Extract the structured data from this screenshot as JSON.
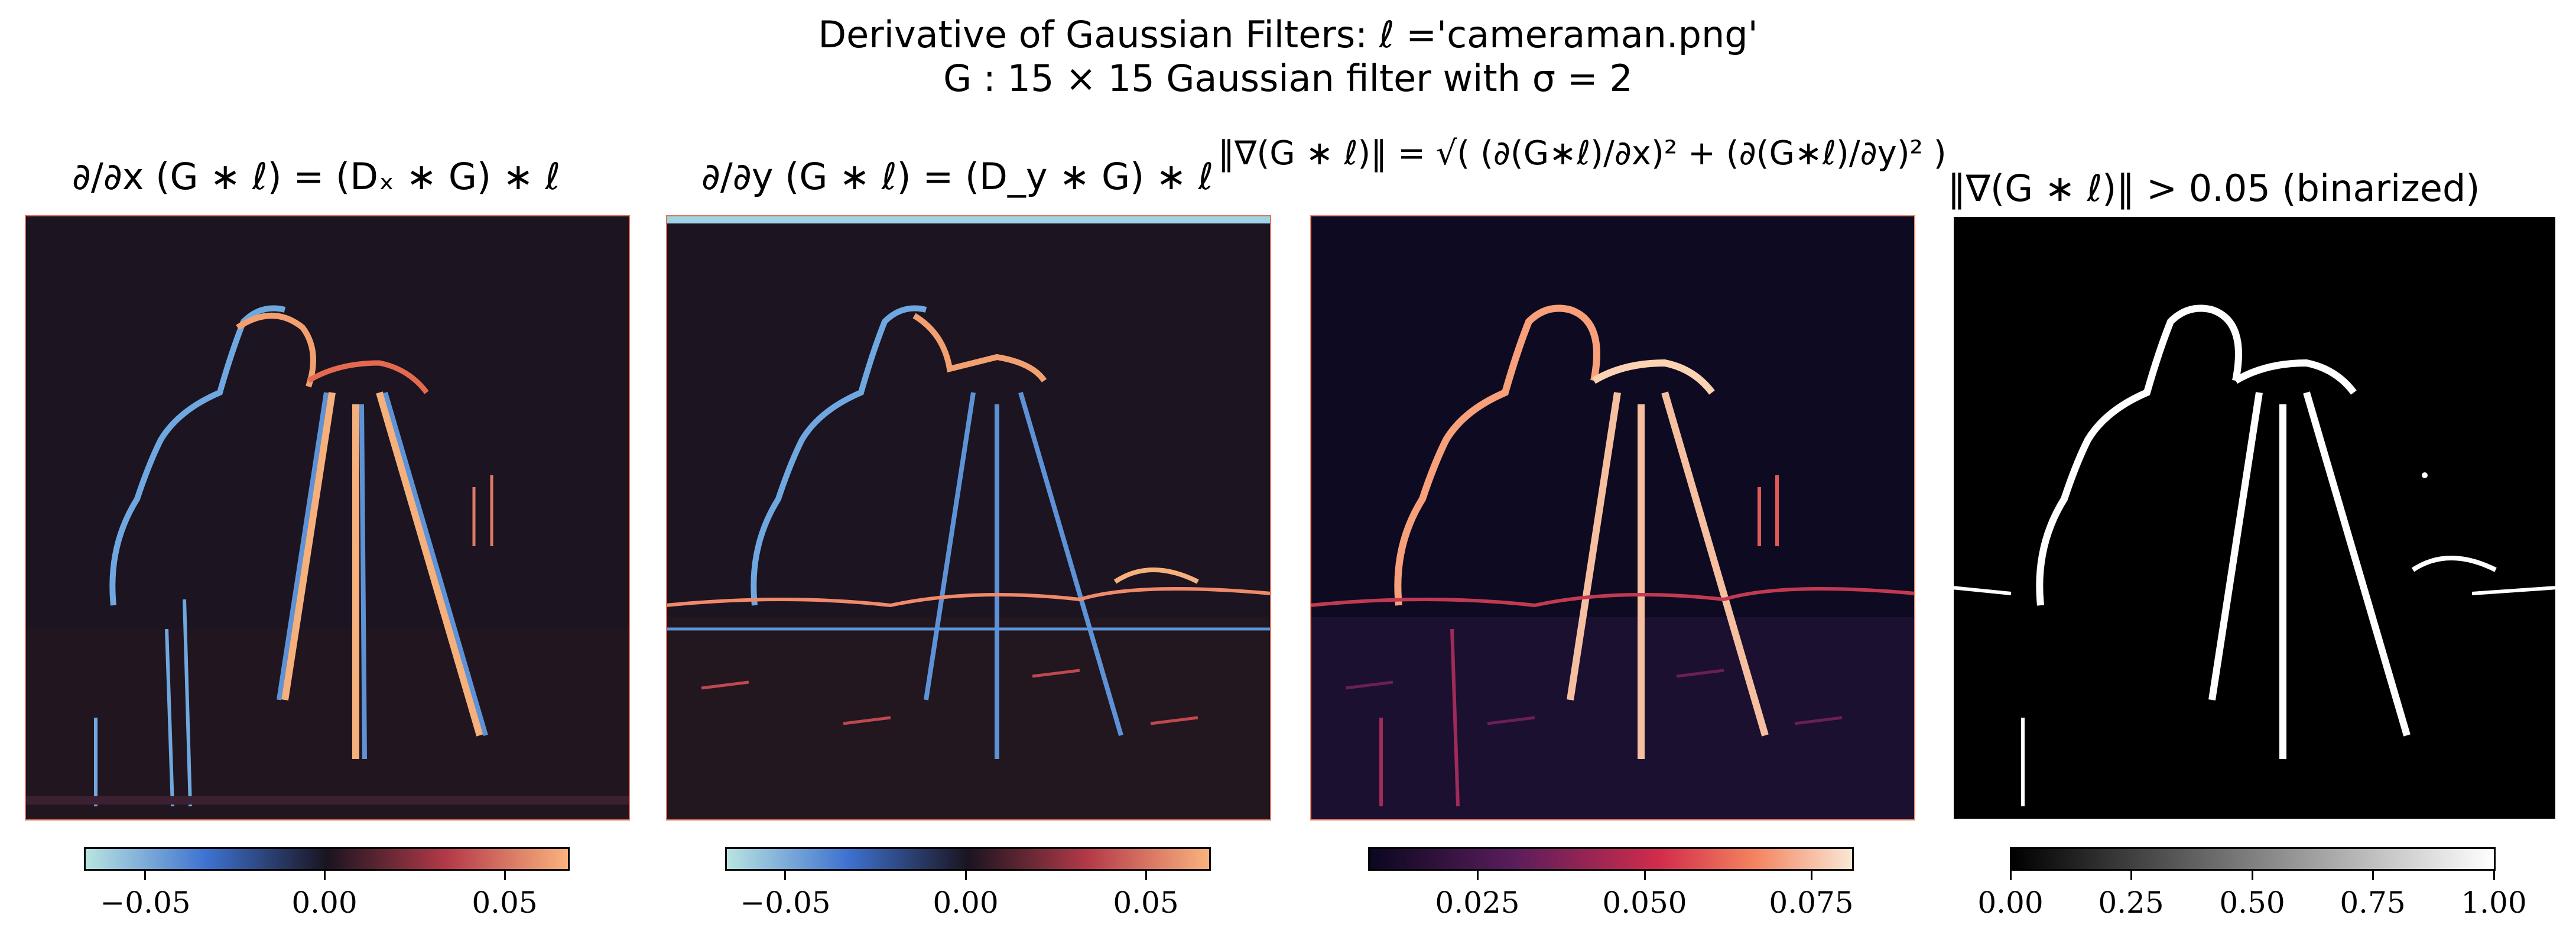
{
  "suptitle": {
    "line1": "Derivative of Gaussian Filters: ℓ ='cameraman.png'",
    "line2": "G : 15 × 15 Gaussian filter with σ = 2"
  },
  "panels": [
    {
      "title": "∂/∂x (G ∗ ℓ) = (Dₓ ∗ G) ∗ ℓ",
      "colormap": "icefire (diverging, cyan–blue–black–red–orange)",
      "colorbar_ticks": [
        "−0.05",
        "0.00",
        "0.05"
      ],
      "colors": [
        "#b9e4e1",
        "#3e72d0",
        "#1a1420",
        "#b43a48",
        "#fbb27e"
      ]
    },
    {
      "title": "∂/∂y (G ∗ ℓ) = (D_y ∗ G) ∗ ℓ",
      "colormap": "icefire (diverging, cyan–blue–black–red–orange)",
      "colorbar_ticks": [
        "−0.05",
        "0.00",
        "0.05"
      ],
      "colors": [
        "#b9e4e1",
        "#3e72d0",
        "#1a1420",
        "#b43a48",
        "#fbb27e"
      ]
    },
    {
      "title": "‖∇(G ∗ ℓ)‖ = √( (∂(G∗ℓ)/∂x)² + (∂(G∗ℓ)/∂y)² )",
      "colormap": "rocket (sequential, black–purple–red–cream)",
      "colorbar_ticks": [
        "0.025",
        "0.050",
        "0.075"
      ],
      "colors": [
        "#0b0720",
        "#5a1d5c",
        "#d12c4b",
        "#f4845f",
        "#f9e7d5"
      ]
    },
    {
      "title": "‖∇(G ∗ ℓ)‖ > 0.05 (binarized)",
      "colormap": "gray (sequential, black–white)",
      "colorbar_ticks": [
        "0.00",
        "0.25",
        "0.50",
        "0.75",
        "1.00"
      ],
      "colors": [
        "#000000",
        "#ffffff"
      ]
    }
  ]
}
